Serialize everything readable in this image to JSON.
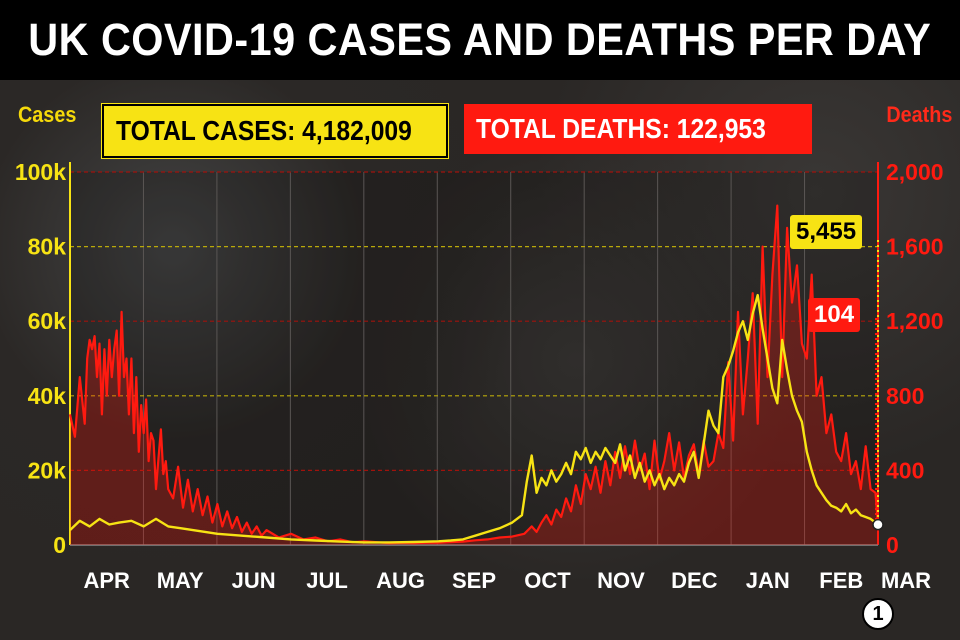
{
  "title": "UK COVID-19 CASES AND DEATHS PER DAY",
  "badges": {
    "total_cases": "TOTAL CASES: 4,182,009",
    "total_deaths": "TOTAL DEATHS: 122,953"
  },
  "colors": {
    "cases": "#f7e314",
    "deaths": "#ff1a10",
    "background": "#2a2725",
    "grid_cases": "#b9a90a",
    "grid_deaths": "#a0120c"
  },
  "chart_data": {
    "type": "line",
    "title": "UK COVID-19 CASES AND DEATHS PER DAY",
    "left_axis": {
      "label": "Cases",
      "ticks": [
        "0",
        "20k",
        "40k",
        "60k",
        "80k",
        "100k"
      ],
      "range": [
        0,
        100000
      ]
    },
    "right_axis": {
      "label": "Deaths",
      "ticks": [
        "0",
        "400",
        "800",
        "1,200",
        "1,600",
        "2,000"
      ],
      "range": [
        0,
        2000
      ]
    },
    "months": [
      "APR",
      "MAY",
      "JUN",
      "JUL",
      "AUG",
      "SEP",
      "OCT",
      "NOV",
      "DEC",
      "JAN",
      "FEB",
      "MAR"
    ],
    "grid": true,
    "series": [
      {
        "name": "Cases",
        "axis": "left",
        "color": "#f7e314",
        "points": [
          [
            0,
            4000
          ],
          [
            4,
            6500
          ],
          [
            8,
            5000
          ],
          [
            12,
            7000
          ],
          [
            16,
            5500
          ],
          [
            20,
            6000
          ],
          [
            25,
            6500
          ],
          [
            30,
            5000
          ],
          [
            35,
            7000
          ],
          [
            40,
            5000
          ],
          [
            45,
            4500
          ],
          [
            50,
            4000
          ],
          [
            60,
            3000
          ],
          [
            70,
            2500
          ],
          [
            80,
            2000
          ],
          [
            90,
            1500
          ],
          [
            100,
            1200
          ],
          [
            110,
            900
          ],
          [
            120,
            700
          ],
          [
            130,
            700
          ],
          [
            140,
            800
          ],
          [
            150,
            1000
          ],
          [
            155,
            1200
          ],
          [
            160,
            1500
          ],
          [
            165,
            2500
          ],
          [
            170,
            3500
          ],
          [
            175,
            4500
          ],
          [
            180,
            6000
          ],
          [
            184,
            8000
          ],
          [
            186,
            17000
          ],
          [
            188,
            24000
          ],
          [
            190,
            14000
          ],
          [
            192,
            18000
          ],
          [
            194,
            16000
          ],
          [
            196,
            20000
          ],
          [
            198,
            17000
          ],
          [
            200,
            19000
          ],
          [
            202,
            22000
          ],
          [
            204,
            19000
          ],
          [
            206,
            25000
          ],
          [
            208,
            23000
          ],
          [
            210,
            26000
          ],
          [
            212,
            22000
          ],
          [
            214,
            25000
          ],
          [
            216,
            23000
          ],
          [
            218,
            26000
          ],
          [
            220,
            24000
          ],
          [
            222,
            22000
          ],
          [
            224,
            27000
          ],
          [
            226,
            20000
          ],
          [
            228,
            24000
          ],
          [
            230,
            18000
          ],
          [
            232,
            22000
          ],
          [
            234,
            17000
          ],
          [
            236,
            20000
          ],
          [
            238,
            16000
          ],
          [
            240,
            19000
          ],
          [
            242,
            15000
          ],
          [
            244,
            18000
          ],
          [
            246,
            16000
          ],
          [
            248,
            19000
          ],
          [
            250,
            17000
          ],
          [
            252,
            22000
          ],
          [
            254,
            25000
          ],
          [
            256,
            18000
          ],
          [
            258,
            27000
          ],
          [
            260,
            36000
          ],
          [
            262,
            32000
          ],
          [
            264,
            30000
          ],
          [
            266,
            45000
          ],
          [
            268,
            48000
          ],
          [
            270,
            52000
          ],
          [
            272,
            57000
          ],
          [
            274,
            60000
          ],
          [
            276,
            55000
          ],
          [
            278,
            62000
          ],
          [
            280,
            67000
          ],
          [
            282,
            58000
          ],
          [
            284,
            50000
          ],
          [
            286,
            42000
          ],
          [
            288,
            38000
          ],
          [
            290,
            55000
          ],
          [
            292,
            47000
          ],
          [
            294,
            40000
          ],
          [
            296,
            36000
          ],
          [
            298,
            33000
          ],
          [
            300,
            25000
          ],
          [
            302,
            20000
          ],
          [
            304,
            16000
          ],
          [
            306,
            14000
          ],
          [
            308,
            12000
          ],
          [
            310,
            10500
          ],
          [
            312,
            10000
          ],
          [
            314,
            9000
          ],
          [
            316,
            11000
          ],
          [
            318,
            8500
          ],
          [
            320,
            9500
          ],
          [
            322,
            8000
          ],
          [
            324,
            7500
          ],
          [
            326,
            7000
          ],
          [
            328,
            6000
          ],
          [
            329,
            5455
          ]
        ]
      },
      {
        "name": "Deaths",
        "axis": "right",
        "color": "#ff1a10",
        "points": [
          [
            0,
            700
          ],
          [
            2,
            580
          ],
          [
            4,
            900
          ],
          [
            6,
            650
          ],
          [
            7,
            1000
          ],
          [
            8,
            1100
          ],
          [
            9,
            1050
          ],
          [
            10,
            1120
          ],
          [
            11,
            900
          ],
          [
            12,
            1080
          ],
          [
            13,
            700
          ],
          [
            14,
            1050
          ],
          [
            15,
            800
          ],
          [
            16,
            1100
          ],
          [
            17,
            900
          ],
          [
            18,
            1050
          ],
          [
            19,
            1150
          ],
          [
            20,
            800
          ],
          [
            21,
            1250
          ],
          [
            22,
            900
          ],
          [
            23,
            1000
          ],
          [
            24,
            700
          ],
          [
            25,
            1000
          ],
          [
            26,
            600
          ],
          [
            27,
            900
          ],
          [
            28,
            500
          ],
          [
            29,
            750
          ],
          [
            30,
            600
          ],
          [
            31,
            780
          ],
          [
            32,
            450
          ],
          [
            33,
            600
          ],
          [
            34,
            560
          ],
          [
            35,
            300
          ],
          [
            36,
            460
          ],
          [
            37,
            620
          ],
          [
            38,
            380
          ],
          [
            39,
            450
          ],
          [
            40,
            300
          ],
          [
            42,
            250
          ],
          [
            44,
            420
          ],
          [
            46,
            200
          ],
          [
            48,
            350
          ],
          [
            50,
            180
          ],
          [
            52,
            300
          ],
          [
            54,
            160
          ],
          [
            56,
            260
          ],
          [
            58,
            120
          ],
          [
            60,
            220
          ],
          [
            62,
            100
          ],
          [
            64,
            180
          ],
          [
            66,
            90
          ],
          [
            68,
            150
          ],
          [
            70,
            70
          ],
          [
            72,
            120
          ],
          [
            74,
            60
          ],
          [
            76,
            100
          ],
          [
            78,
            50
          ],
          [
            80,
            80
          ],
          [
            85,
            40
          ],
          [
            90,
            60
          ],
          [
            95,
            30
          ],
          [
            100,
            40
          ],
          [
            105,
            20
          ],
          [
            110,
            30
          ],
          [
            115,
            15
          ],
          [
            120,
            20
          ],
          [
            125,
            15
          ],
          [
            130,
            10
          ],
          [
            135,
            12
          ],
          [
            140,
            10
          ],
          [
            145,
            12
          ],
          [
            150,
            12
          ],
          [
            155,
            15
          ],
          [
            160,
            18
          ],
          [
            165,
            25
          ],
          [
            170,
            30
          ],
          [
            175,
            40
          ],
          [
            180,
            45
          ],
          [
            185,
            60
          ],
          [
            188,
            100
          ],
          [
            190,
            70
          ],
          [
            192,
            120
          ],
          [
            194,
            160
          ],
          [
            196,
            110
          ],
          [
            198,
            190
          ],
          [
            200,
            150
          ],
          [
            202,
            250
          ],
          [
            204,
            180
          ],
          [
            206,
            320
          ],
          [
            208,
            220
          ],
          [
            210,
            380
          ],
          [
            212,
            300
          ],
          [
            214,
            420
          ],
          [
            216,
            280
          ],
          [
            218,
            450
          ],
          [
            220,
            320
          ],
          [
            222,
            500
          ],
          [
            224,
            360
          ],
          [
            226,
            530
          ],
          [
            228,
            380
          ],
          [
            230,
            560
          ],
          [
            232,
            400
          ],
          [
            234,
            490
          ],
          [
            236,
            300
          ],
          [
            238,
            560
          ],
          [
            240,
            350
          ],
          [
            242,
            450
          ],
          [
            244,
            600
          ],
          [
            246,
            400
          ],
          [
            248,
            550
          ],
          [
            250,
            360
          ],
          [
            252,
            480
          ],
          [
            254,
            540
          ],
          [
            256,
            380
          ],
          [
            258,
            560
          ],
          [
            260,
            420
          ],
          [
            262,
            450
          ],
          [
            264,
            600
          ],
          [
            266,
            520
          ],
          [
            268,
            980
          ],
          [
            270,
            560
          ],
          [
            272,
            1250
          ],
          [
            274,
            700
          ],
          [
            276,
            1000
          ],
          [
            278,
            1350
          ],
          [
            280,
            650
          ],
          [
            282,
            1600
          ],
          [
            284,
            900
          ],
          [
            286,
            1450
          ],
          [
            288,
            1820
          ],
          [
            290,
            900
          ],
          [
            292,
            1700
          ],
          [
            294,
            1300
          ],
          [
            296,
            1500
          ],
          [
            298,
            1080
          ],
          [
            300,
            1000
          ],
          [
            302,
            1450
          ],
          [
            304,
            800
          ],
          [
            306,
            900
          ],
          [
            308,
            600
          ],
          [
            310,
            700
          ],
          [
            312,
            500
          ],
          [
            314,
            450
          ],
          [
            316,
            600
          ],
          [
            318,
            380
          ],
          [
            320,
            450
          ],
          [
            322,
            300
          ],
          [
            324,
            530
          ],
          [
            326,
            300
          ],
          [
            328,
            280
          ],
          [
            329,
            104
          ]
        ]
      }
    ],
    "callouts": {
      "cases_last": "5,455",
      "deaths_last": "104"
    },
    "footnote_marker": "1"
  }
}
